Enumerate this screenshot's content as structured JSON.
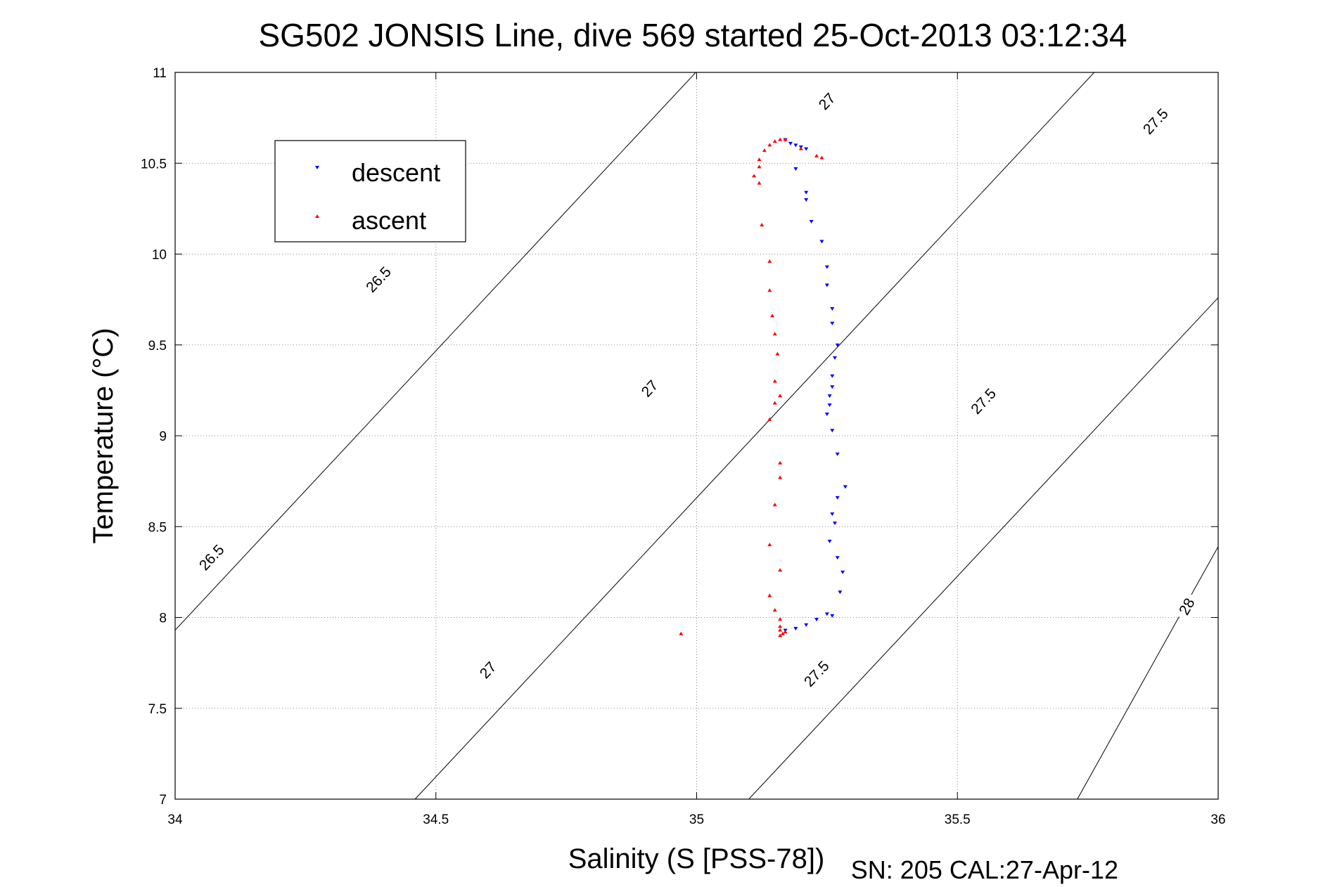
{
  "chart_data": {
    "type": "scatter",
    "title": "SG502 JONSIS Line, dive 569 started 25-Oct-2013 03:12:34",
    "xlabel": "Salinity (S [PSS-78])",
    "ylabel": "Temperature (°C)",
    "footer": "SN: 205  CAL:27-Apr-12",
    "xlim": [
      34,
      36
    ],
    "ylim": [
      7,
      11
    ],
    "xticks": [
      "34",
      "34.5",
      "35",
      "35.5",
      "36"
    ],
    "yticks": [
      "7",
      "7.5",
      "8",
      "8.5",
      "9",
      "9.5",
      "10",
      "10.5",
      "11"
    ],
    "grid": true,
    "legend": {
      "placement": "top-left",
      "entries": [
        {
          "name": "descent",
          "color": "#0000ff",
          "marker": "triangle-down"
        },
        {
          "name": "ascent",
          "color": "#ff0000",
          "marker": "triangle-up"
        }
      ]
    },
    "contours": [
      {
        "label": "26.5",
        "points": [
          [
            34.0,
            7.93
          ],
          [
            36.0,
            14.08
          ]
        ],
        "labels_at": [
          [
            34.07,
            8.33
          ],
          [
            34.39,
            9.86
          ]
        ]
      },
      {
        "label": "27",
        "points": [
          [
            34.46,
            7.0
          ],
          [
            36.0,
            11.73
          ]
        ],
        "labels_at": [
          [
            34.6,
            7.71
          ],
          [
            34.91,
            9.26
          ],
          [
            35.25,
            10.84
          ]
        ]
      },
      {
        "label": "27.5",
        "points": [
          [
            35.1,
            7.0
          ],
          [
            36.0,
            9.76
          ]
        ],
        "labels_at": [
          [
            35.23,
            7.69
          ],
          [
            35.55,
            9.19
          ],
          [
            35.88,
            10.73
          ]
        ]
      },
      {
        "label": "28",
        "points": [
          [
            35.73,
            7.0
          ],
          [
            36.0,
            8.39
          ]
        ],
        "labels_at": [
          [
            35.94,
            8.06
          ]
        ]
      }
    ],
    "series": [
      {
        "name": "descent",
        "x": [
          35.17,
          35.18,
          35.19,
          35.2,
          35.21,
          35.19,
          35.21,
          35.21,
          35.22,
          35.24,
          35.25,
          35.25,
          35.26,
          35.26,
          35.27,
          35.265,
          35.26,
          35.26,
          35.255,
          35.255,
          35.25,
          35.26,
          35.27,
          35.285,
          35.27,
          35.26,
          35.265,
          35.255,
          35.27,
          35.28,
          35.275,
          35.25,
          35.26,
          35.23,
          35.21,
          35.19,
          35.17
        ],
        "y": [
          10.63,
          10.61,
          10.6,
          10.59,
          10.58,
          10.47,
          10.34,
          10.3,
          10.18,
          10.07,
          9.93,
          9.83,
          9.7,
          9.62,
          9.5,
          9.43,
          9.33,
          9.27,
          9.22,
          9.17,
          9.12,
          9.03,
          8.9,
          8.72,
          8.66,
          8.57,
          8.52,
          8.42,
          8.33,
          8.25,
          8.14,
          8.02,
          8.01,
          7.99,
          7.96,
          7.94,
          7.93
        ]
      },
      {
        "name": "ascent",
        "x": [
          35.17,
          35.16,
          35.15,
          35.14,
          35.13,
          35.12,
          35.12,
          35.11,
          35.12,
          35.125,
          35.14,
          35.14,
          35.145,
          35.15,
          35.155,
          35.15,
          35.16,
          35.15,
          35.14,
          35.16,
          35.16,
          35.15,
          35.14,
          35.16,
          35.14,
          35.15,
          35.16,
          35.16,
          35.16,
          35.17,
          35.165,
          35.16,
          35.2,
          35.23,
          35.24,
          34.97
        ],
        "y": [
          10.63,
          10.63,
          10.62,
          10.6,
          10.57,
          10.52,
          10.48,
          10.43,
          10.39,
          10.16,
          9.96,
          9.8,
          9.66,
          9.56,
          9.45,
          9.3,
          9.22,
          9.18,
          9.09,
          8.85,
          8.77,
          8.62,
          8.4,
          8.26,
          8.12,
          8.04,
          7.99,
          7.95,
          7.93,
          7.92,
          7.91,
          7.9,
          10.58,
          10.54,
          10.53,
          7.91
        ]
      }
    ]
  }
}
